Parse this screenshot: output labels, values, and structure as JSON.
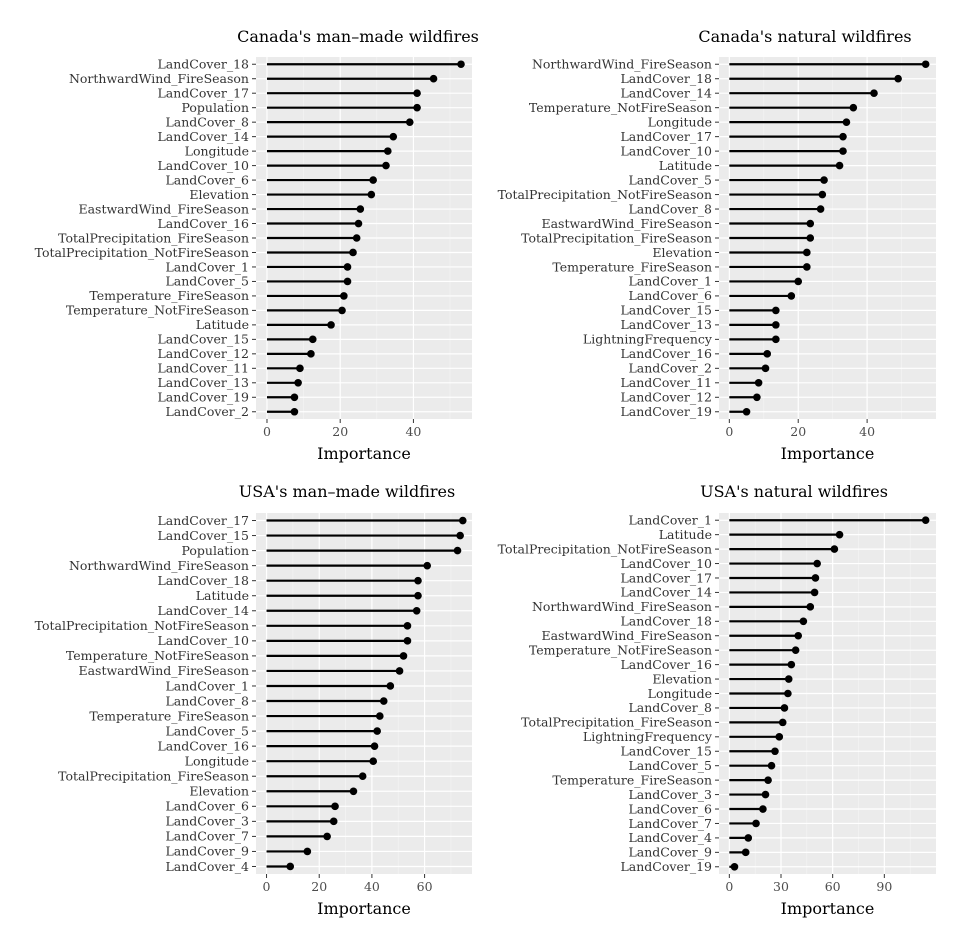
{
  "chart_data": [
    {
      "type": "lollipop",
      "title": "Canada's man–made wildfires",
      "xlabel": "Importance",
      "xlim": [
        -3,
        56
      ],
      "xticks": [
        0,
        20,
        40
      ],
      "xtick_labels": [
        "0",
        "20",
        "40"
      ],
      "categories": [
        "LandCover_18",
        "NorthwardWind_FireSeason",
        "LandCover_17",
        "Population",
        "LandCover_8",
        "LandCover_14",
        "Longitude",
        "LandCover_10",
        "LandCover_6",
        "Elevation",
        "EastwardWind_FireSeason",
        "LandCover_16",
        "TotalPrecipitation_FireSeason",
        "TotalPrecipitation_NotFireSeason",
        "LandCover_1",
        "LandCover_5",
        "Temperature_FireSeason",
        "Temperature_NotFireSeason",
        "Latitude",
        "LandCover_15",
        "LandCover_12",
        "LandCover_11",
        "LandCover_13",
        "LandCover_19",
        "LandCover_2"
      ],
      "values": [
        53,
        45.5,
        41,
        41,
        39,
        34.5,
        33,
        32.5,
        29,
        28.5,
        25.5,
        25,
        24.5,
        23.5,
        22,
        22,
        21,
        20.5,
        17.5,
        12.5,
        12,
        9,
        8.5,
        7.5,
        7.5
      ]
    },
    {
      "type": "lollipop",
      "title": "Canada's natural wildfires",
      "xlabel": "Importance",
      "xlim": [
        -3,
        60
      ],
      "xticks": [
        0,
        20,
        40
      ],
      "xtick_labels": [
        "0",
        "20",
        "40"
      ],
      "categories": [
        "NorthwardWind_FireSeason",
        "LandCover_18",
        "LandCover_14",
        "Temperature_NotFireSeason",
        "Longitude",
        "LandCover_17",
        "LandCover_10",
        "Latitude",
        "LandCover_5",
        "TotalPrecipitation_NotFireSeason",
        "LandCover_8",
        "EastwardWind_FireSeason",
        "TotalPrecipitation_FireSeason",
        "Elevation",
        "Temperature_FireSeason",
        "LandCover_1",
        "LandCover_6",
        "LandCover_15",
        "LandCover_13",
        "LightningFrequency",
        "LandCover_16",
        "LandCover_2",
        "LandCover_11",
        "LandCover_12",
        "LandCover_19"
      ],
      "values": [
        57,
        49,
        42,
        36,
        34,
        33,
        33,
        32,
        27.5,
        27,
        26.5,
        23.5,
        23.5,
        22.5,
        22.5,
        20,
        18,
        13.5,
        13.5,
        13.5,
        11,
        10.5,
        8.5,
        8,
        5
      ]
    },
    {
      "type": "lollipop",
      "title": "USA's man–made wildfires",
      "xlabel": "Importance",
      "xlim": [
        -4,
        78
      ],
      "xticks": [
        0,
        20,
        40,
        60
      ],
      "xtick_labels": [
        "0",
        "20",
        "40",
        "60"
      ],
      "categories": [
        "LandCover_17",
        "LandCover_15",
        "Population",
        "NorthwardWind_FireSeason",
        "LandCover_18",
        "Latitude",
        "LandCover_14",
        "TotalPrecipitation_NotFireSeason",
        "LandCover_10",
        "Temperature_NotFireSeason",
        "EastwardWind_FireSeason",
        "LandCover_1",
        "LandCover_8",
        "Temperature_FireSeason",
        "LandCover_5",
        "LandCover_16",
        "Longitude",
        "TotalPrecipitation_FireSeason",
        "Elevation",
        "LandCover_6",
        "LandCover_3",
        "LandCover_7",
        "LandCover_9",
        "LandCover_4"
      ],
      "values": [
        74.5,
        73.5,
        72.5,
        61,
        57.5,
        57.5,
        57,
        53.5,
        53.5,
        52,
        50.5,
        47,
        44.5,
        43,
        42,
        41,
        40.5,
        36.5,
        33,
        26,
        25.5,
        23,
        15.5,
        9
      ]
    },
    {
      "type": "lollipop",
      "title": "USA's natural wildfires",
      "xlabel": "Importance",
      "xlim": [
        -6,
        120
      ],
      "xticks": [
        0,
        30,
        60,
        90
      ],
      "xtick_labels": [
        "0",
        "30",
        "60",
        "90"
      ],
      "categories": [
        "LandCover_1",
        "Latitude",
        "TotalPrecipitation_NotFireSeason",
        "LandCover_10",
        "LandCover_17",
        "LandCover_14",
        "NorthwardWind_FireSeason",
        "LandCover_18",
        "EastwardWind_FireSeason",
        "Temperature_NotFireSeason",
        "LandCover_16",
        "Elevation",
        "Longitude",
        "LandCover_8",
        "TotalPrecipitation_FireSeason",
        "LightningFrequency",
        "LandCover_15",
        "LandCover_5",
        "Temperature_FireSeason",
        "LandCover_3",
        "LandCover_6",
        "LandCover_7",
        "LandCover_4",
        "LandCover_9",
        "LandCover_19"
      ],
      "values": [
        114,
        64,
        61,
        51,
        50,
        49.5,
        47,
        43,
        40,
        38.5,
        36,
        34.5,
        34,
        32,
        31,
        29,
        26.5,
        24.5,
        22.5,
        21,
        19.5,
        15.5,
        11,
        9.5,
        3
      ]
    }
  ]
}
